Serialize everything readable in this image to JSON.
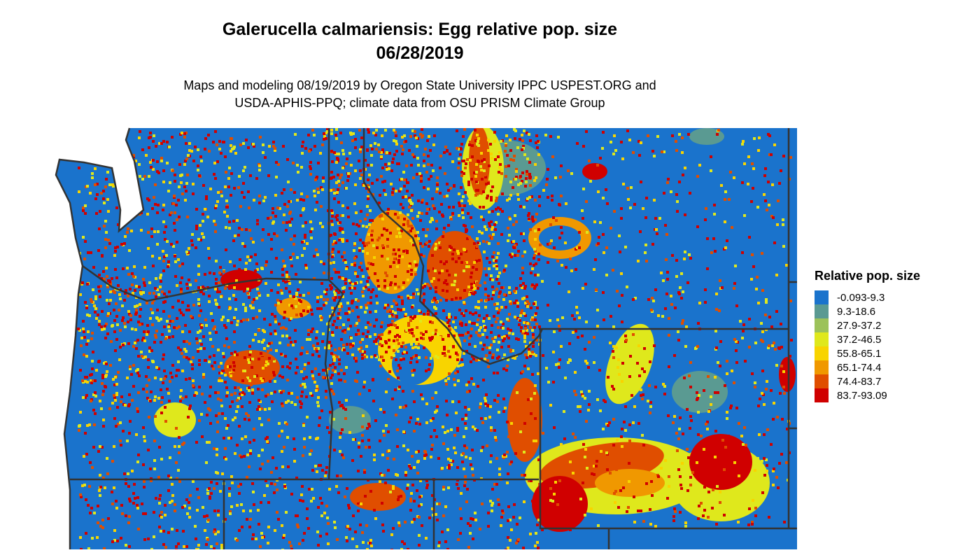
{
  "title": {
    "line1": "Galerucella calmariensis: Egg relative pop. size",
    "line2": "06/28/2019"
  },
  "subtitle": {
    "line1": "Maps and modeling 08/19/2019 by Oregon State University IPPC USPEST.ORG and",
    "line2": "USDA-APHIS-PPQ; climate data from OSU PRISM Climate Group"
  },
  "legend": {
    "title": "Relative pop. size",
    "items": [
      {
        "label": "-0.093-9.3",
        "color": "#1a73cc"
      },
      {
        "label": "9.3-18.6",
        "color": "#5a9a92"
      },
      {
        "label": "27.9-37.2",
        "color": "#9cc25a"
      },
      {
        "label": "37.2-46.5",
        "color": "#dfe81c"
      },
      {
        "label": "55.8-65.1",
        "color": "#f8d400"
      },
      {
        "label": "65.1-74.4",
        "color": "#f09800"
      },
      {
        "label": "74.4-83.7",
        "color": "#e04e00"
      },
      {
        "label": "83.7-93.09",
        "color": "#d00000"
      }
    ]
  },
  "boundary_color": "#333333"
}
